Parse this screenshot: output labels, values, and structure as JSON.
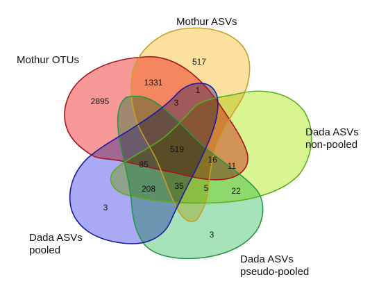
{
  "sets": [
    {
      "id": "mothur_otus",
      "label_lines": [
        "Mothur OTUs"
      ],
      "fill": "#F79999",
      "stroke": "#A8141C"
    },
    {
      "id": "mothur_asvs",
      "label_lines": [
        "Mothur ASVs"
      ],
      "fill": "#FCE0A0",
      "stroke": "#C8A028"
    },
    {
      "id": "dada_nonpooled",
      "label_lines": [
        "Dada ASVs",
        "non-pooled"
      ],
      "fill": "#D8F592",
      "stroke": "#58AE1E"
    },
    {
      "id": "dada_pseudopooled",
      "label_lines": [
        "Dada ASVs",
        "pseudo-pooled"
      ],
      "fill": "#A6E2BA",
      "stroke": "#249640"
    },
    {
      "id": "dada_pooled",
      "label_lines": [
        "Dada ASVs",
        "pooled"
      ],
      "fill": "#A9A9F5",
      "stroke": "#1A1AA0"
    }
  ],
  "regions": [
    {
      "value": "2895",
      "sets": [
        "mothur_otus"
      ]
    },
    {
      "value": "1331",
      "sets": [
        "mothur_otus",
        "mothur_asvs"
      ]
    },
    {
      "value": "517",
      "sets": [
        "mothur_asvs"
      ]
    },
    {
      "value": "1",
      "sets": [
        "mothur_asvs",
        "dada_pooled"
      ]
    },
    {
      "value": "3",
      "sets": [
        "mothur_otus",
        "mothur_asvs",
        "dada_pooled"
      ]
    },
    {
      "value": "519",
      "sets": [
        "mothur_otus",
        "mothur_asvs",
        "dada_nonpooled",
        "dada_pseudopooled",
        "dada_pooled"
      ]
    },
    {
      "value": "85",
      "sets": [
        "mothur_otus",
        "dada_pooled",
        "dada_pseudopooled"
      ]
    },
    {
      "value": "16",
      "sets": [
        "mothur_otus",
        "mothur_asvs",
        "dada_nonpooled",
        "dada_pseudopooled"
      ]
    },
    {
      "value": "11",
      "sets": [
        "mothur_otus",
        "dada_nonpooled",
        "dada_pseudopooled"
      ]
    },
    {
      "value": "208",
      "sets": [
        "dada_pooled",
        "dada_pseudopooled",
        "dada_nonpooled"
      ]
    },
    {
      "value": "35",
      "sets": [
        "mothur_asvs",
        "dada_pooled",
        "dada_pseudopooled",
        "dada_nonpooled"
      ]
    },
    {
      "value": "5",
      "sets": [
        "mothur_asvs",
        "dada_nonpooled",
        "dada_pseudopooled"
      ]
    },
    {
      "value": "22",
      "sets": [
        "dada_nonpooled",
        "dada_pseudopooled"
      ]
    },
    {
      "value": "3",
      "sets": [
        "dada_pooled"
      ]
    },
    {
      "value": "3",
      "sets": [
        "dada_pseudopooled"
      ]
    }
  ]
}
